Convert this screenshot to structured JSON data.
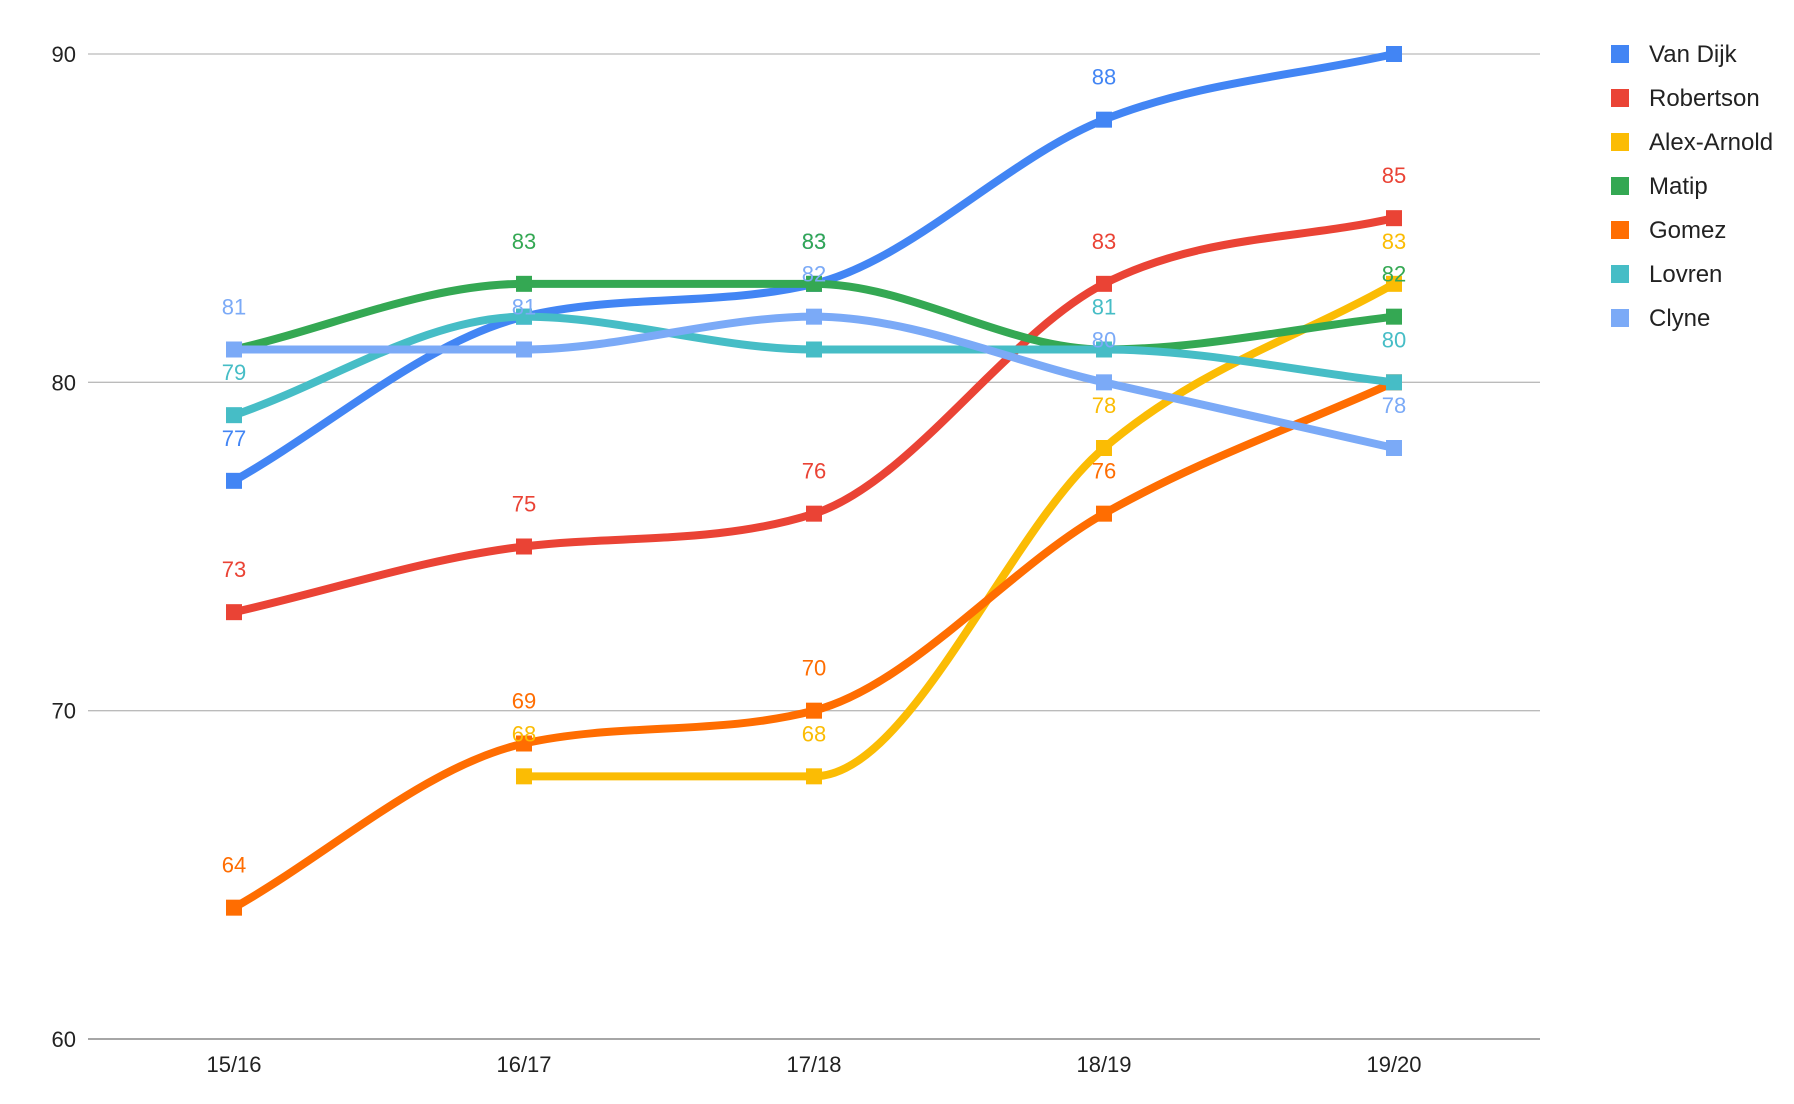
{
  "chart_data": {
    "type": "line",
    "title": "",
    "xlabel": "",
    "ylabel": "",
    "categories": [
      "15/16",
      "16/17",
      "17/18",
      "18/19",
      "19/20"
    ],
    "ylim": [
      60,
      90
    ],
    "yticks": [
      60,
      70,
      80,
      90
    ],
    "grid": true,
    "legend_position": "right",
    "smooth": true,
    "marker": "square",
    "data_labels": true,
    "series": [
      {
        "name": "Van Dijk",
        "color": "#4285f4",
        "values": [
          77,
          82,
          83,
          88,
          90
        ],
        "labels": [
          true,
          false,
          true,
          true,
          false
        ]
      },
      {
        "name": "Robertson",
        "color": "#ea4335",
        "values": [
          73,
          75,
          76,
          83,
          85
        ],
        "labels": [
          true,
          true,
          true,
          true,
          true
        ]
      },
      {
        "name": "Alex-Arnold",
        "color": "#fbbc04",
        "values": [
          null,
          68,
          68,
          78,
          83
        ],
        "labels": [
          false,
          true,
          true,
          true,
          true
        ]
      },
      {
        "name": "Matip",
        "color": "#34a853",
        "values": [
          81,
          83,
          83,
          81,
          82
        ],
        "labels": [
          false,
          true,
          true,
          false,
          true
        ]
      },
      {
        "name": "Gomez",
        "color": "#ff6d01",
        "values": [
          64,
          69,
          70,
          76,
          80
        ],
        "labels": [
          true,
          true,
          true,
          true,
          false
        ]
      },
      {
        "name": "Lovren",
        "color": "#46bdc6",
        "values": [
          79,
          82,
          81,
          81,
          80
        ],
        "labels": [
          true,
          false,
          false,
          true,
          true
        ]
      },
      {
        "name": "Clyne",
        "color": "#7baaf7",
        "values": [
          81,
          81,
          82,
          80,
          78
        ],
        "labels": [
          true,
          true,
          true,
          true,
          true
        ]
      }
    ]
  }
}
